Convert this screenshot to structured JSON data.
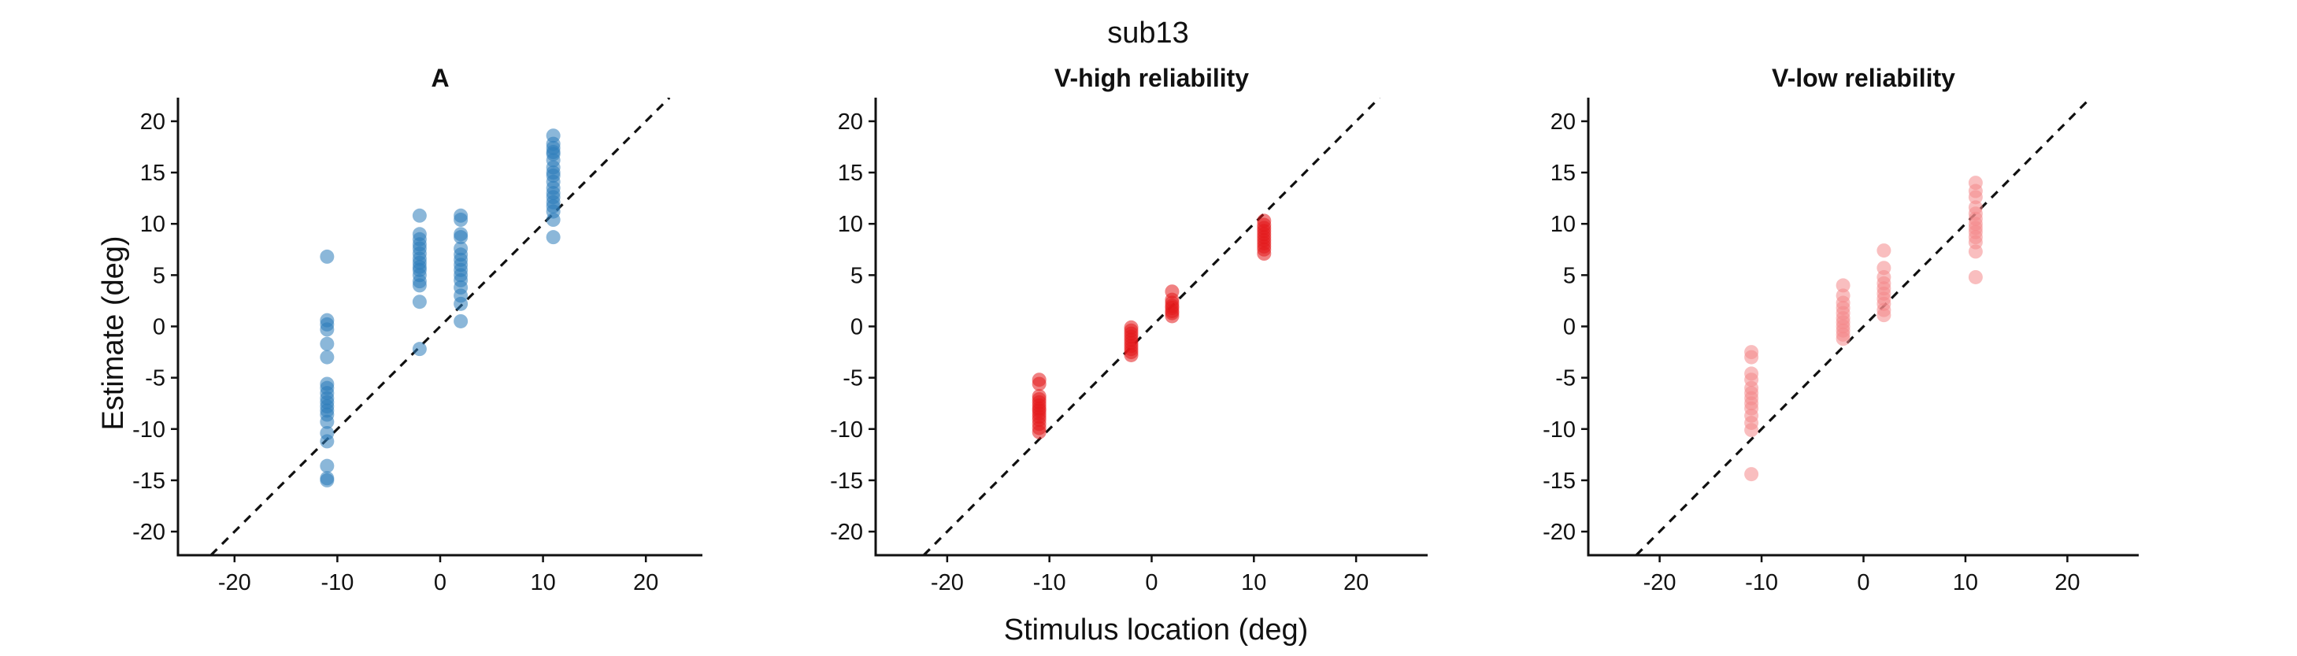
{
  "figure": {
    "suptitle": "sub13",
    "ylabel": "Estimate (deg)",
    "xlabel": "Stimulus location (deg)"
  },
  "chart_data": [
    {
      "type": "scatter",
      "title": "A",
      "color": "#2b7bba",
      "point_opacity": 0.55,
      "xlim": [
        -25.5,
        25.5
      ],
      "ylim": [
        -22.3,
        22.3
      ],
      "xticks": [
        -20,
        -10,
        0,
        10,
        20
      ],
      "yticks": [
        -20,
        -15,
        -10,
        -5,
        0,
        5,
        10,
        15,
        20
      ],
      "reference_line": "identity (dashed)",
      "grid": false,
      "series": [
        {
          "x": -11,
          "y": [
            6.8,
            0.6,
            0.2,
            -0.3,
            -1.7,
            -3.0,
            -5.6,
            -6.0,
            -6.5,
            -7.0,
            -7.4,
            -7.8,
            -8.2,
            -8.6,
            -9.3,
            -10.4,
            -11.2,
            -13.6,
            -14.8,
            -15.0
          ]
        },
        {
          "x": -2,
          "y": [
            10.8,
            9.0,
            8.5,
            8.0,
            7.6,
            7.1,
            6.6,
            6.2,
            5.8,
            5.5,
            5.0,
            4.4,
            4.0,
            2.4,
            -2.2
          ]
        },
        {
          "x": 2,
          "y": [
            10.8,
            10.4,
            9.0,
            8.7,
            7.6,
            7.0,
            6.5,
            6.0,
            5.5,
            5.0,
            4.5,
            3.8,
            3.0,
            2.2,
            0.5
          ]
        },
        {
          "x": 11,
          "y": [
            18.6,
            17.8,
            17.4,
            17.0,
            16.8,
            16.2,
            15.5,
            15.0,
            14.7,
            14.1,
            13.5,
            13.0,
            12.6,
            12.1,
            11.7,
            11.2,
            10.4,
            8.7
          ]
        }
      ]
    },
    {
      "type": "scatter",
      "title": "V-high reliability",
      "color": "#e31a1c",
      "point_opacity": 0.55,
      "xlim": [
        -27,
        27
      ],
      "ylim": [
        -22.3,
        22.3
      ],
      "xticks": [
        -20,
        -10,
        0,
        10,
        20
      ],
      "yticks": [
        -20,
        -15,
        -10,
        -5,
        0,
        5,
        10,
        15,
        20
      ],
      "reference_line": "identity (dashed)",
      "grid": false,
      "series": [
        {
          "x": -11,
          "y": [
            -5.2,
            -5.6,
            -6.8,
            -7.1,
            -7.4,
            -7.7,
            -8.0,
            -8.2,
            -8.5,
            -8.8,
            -9.1,
            -9.5,
            -9.9,
            -10.3
          ]
        },
        {
          "x": -2,
          "y": [
            -0.1,
            -0.4,
            -0.7,
            -1.0,
            -1.3,
            -1.6,
            -1.9,
            -2.2,
            -2.5,
            -2.8
          ]
        },
        {
          "x": 2,
          "y": [
            3.4,
            2.6,
            2.3,
            2.0,
            1.8,
            1.5,
            1.3,
            1.0
          ]
        },
        {
          "x": 11,
          "y": [
            10.3,
            9.9,
            9.6,
            9.3,
            9.0,
            8.7,
            8.4,
            8.1,
            7.8,
            7.5,
            7.1
          ]
        }
      ]
    },
    {
      "type": "scatter",
      "title": "V-low reliability",
      "color": "#f4888a",
      "point_opacity": 0.55,
      "xlim": [
        -27,
        27
      ],
      "ylim": [
        -22.3,
        22.3
      ],
      "xticks": [
        -20,
        -10,
        0,
        10,
        20
      ],
      "yticks": [
        -20,
        -15,
        -10,
        -5,
        0,
        5,
        10,
        15,
        20
      ],
      "reference_line": "identity (dashed)",
      "grid": false,
      "series": [
        {
          "x": -11,
          "y": [
            -2.5,
            -3.0,
            -4.6,
            -5.2,
            -6.0,
            -6.5,
            -7.0,
            -7.5,
            -8.0,
            -8.7,
            -9.4,
            -10.1,
            -14.4
          ]
        },
        {
          "x": -2,
          "y": [
            4.0,
            3.0,
            2.3,
            1.8,
            1.3,
            0.8,
            0.4,
            0.0,
            -0.4,
            -0.8,
            -1.2
          ]
        },
        {
          "x": 2,
          "y": [
            7.4,
            5.7,
            4.8,
            4.2,
            3.7,
            3.2,
            2.7,
            2.2,
            1.6,
            1.1
          ]
        },
        {
          "x": 11,
          "y": [
            14.0,
            13.2,
            12.6,
            11.6,
            11.0,
            10.5,
            10.0,
            9.6,
            9.2,
            8.7,
            8.2,
            7.3,
            4.8
          ]
        }
      ]
    }
  ]
}
